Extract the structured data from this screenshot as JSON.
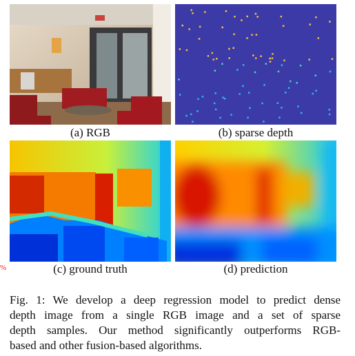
{
  "panels": [
    {
      "caption": "(a) RGB"
    },
    {
      "caption": "(b) sparse depth"
    },
    {
      "caption": "(c) ground truth"
    },
    {
      "caption": "(d) prediction"
    }
  ],
  "margin_mark": "%",
  "figure_caption": {
    "lines": [
      "Fig. 1: We develop a deep regression model to predict dense",
      "depth image from a single RGB image and a set of sparse",
      "depth samples. Our method significantly outperforms RGB-",
      "based and other fusion-based algorithms."
    ]
  }
}
